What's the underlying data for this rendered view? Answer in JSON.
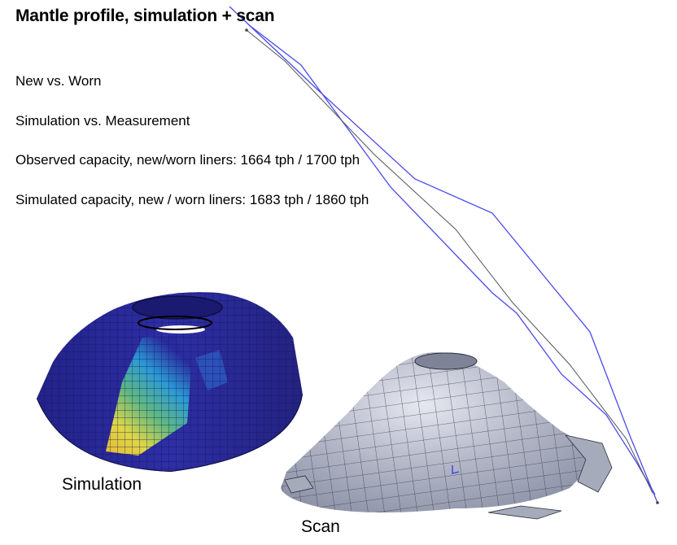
{
  "title": "Mantle profile, simulation + scan",
  "info_lines": [
    "New vs. Worn",
    "Simulation vs. Measurement",
    "Observed capacity, new/worn liners: 1664 tph / 1700 tph",
    "Simulated capacity, new / worn liners: 1683 tph / 1860 tph"
  ],
  "captions": {
    "simulation": "Simulation",
    "scan": "Scan"
  },
  "colors": {
    "simulation_profile": "#4a4af0",
    "measured_profile": "#555555",
    "sim_mesh_base": "#2a2a9a",
    "scan_surface": "#a6abbb"
  }
}
